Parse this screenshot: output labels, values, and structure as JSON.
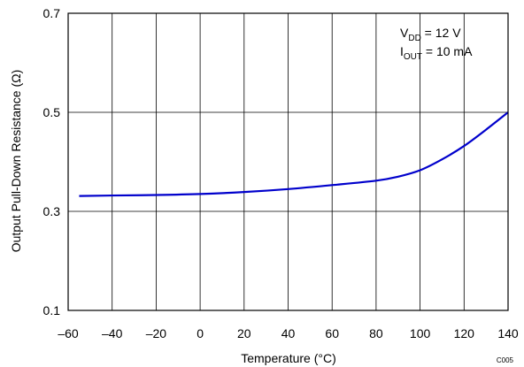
{
  "chart_data": {
    "type": "line",
    "xlabel": "Temperature (°C)",
    "ylabel": "Output Pull-Down Resistance (Ω)",
    "xlim": [
      -60,
      140
    ],
    "ylim": [
      0.1,
      0.7
    ],
    "x_ticks": [
      "–60",
      "–40",
      "–20",
      "0",
      "20",
      "40",
      "60",
      "80",
      "100",
      "120",
      "140"
    ],
    "y_ticks": [
      "0.1",
      "0.3",
      "0.5",
      "0.7"
    ],
    "grid": true,
    "annotations": {
      "vdd_prefix": "V",
      "vdd_sub": "DD",
      "vdd_value": " = 12 V",
      "iout_prefix": "I",
      "iout_sub": "OUT",
      "iout_value": " = 10 mA"
    },
    "figure_code": "C005",
    "series": [
      {
        "color": "#0000cc",
        "x": [
          -55,
          -40,
          -20,
          0,
          20,
          40,
          60,
          80,
          90,
          100,
          110,
          120,
          130,
          140
        ],
        "y": [
          0.331,
          0.332,
          0.333,
          0.335,
          0.339,
          0.345,
          0.353,
          0.362,
          0.37,
          0.383,
          0.405,
          0.432,
          0.465,
          0.5
        ]
      }
    ]
  }
}
